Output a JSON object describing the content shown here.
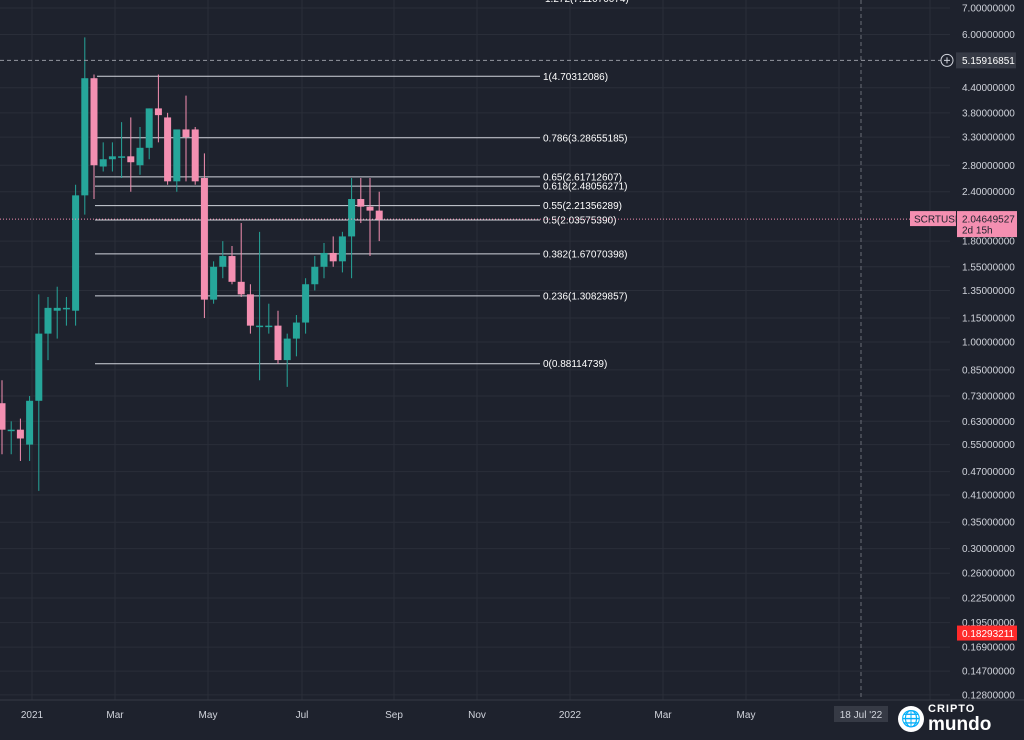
{
  "chart_data": {
    "type": "candlestick",
    "symbol": "SCRTUSD",
    "y_scale": "log",
    "ylim": [
      0.12,
      7.5
    ],
    "grid": true,
    "y_ticks": [
      "7.00000000",
      "6.00000000",
      "5.15916851",
      "4.40000000",
      "3.80000000",
      "3.30000000",
      "2.80000000",
      "2.40000000",
      "2.04649527",
      "1.80000000",
      "1.55000000",
      "1.35000000",
      "1.15000000",
      "1.00000000",
      "0.85000000",
      "0.73000000",
      "0.63000000",
      "0.55000000",
      "0.47000000",
      "0.41000000",
      "0.35000000",
      "0.30000000",
      "0.26000000",
      "0.22500000",
      "0.19500000",
      "0.18293211",
      "0.16900000",
      "0.14700000",
      "0.12800000"
    ],
    "x_ticks": [
      "2021",
      "Mar",
      "May",
      "Jul",
      "Sep",
      "Nov",
      "2022",
      "Mar",
      "May"
    ],
    "x_ticks_partial": [
      "18 Jul '22"
    ],
    "last_price": {
      "label": "SCRTUSD",
      "value": "2.04649527",
      "countdown": "2d 15h",
      "color": "#f48fb1"
    },
    "crosshair_price": {
      "value": "5.15916851"
    },
    "red_price": {
      "value": "0.18293211",
      "color": "#ff2a2a"
    },
    "clipped_top_label": "1.272(7.11070074)",
    "fib_levels": [
      {
        "label": "1(4.70312086)",
        "value": 4.70312086
      },
      {
        "label": "0.786(3.28655185)",
        "value": 3.28655185
      },
      {
        "label": "0.65(2.61712607)",
        "value": 2.61712607
      },
      {
        "label": "0.618(2.48056271)",
        "value": 2.48056271
      },
      {
        "label": "0.55(2.21356289)",
        "value": 2.21356289
      },
      {
        "label": "0.5(2.03575390)",
        "value": 2.0357539
      },
      {
        "label": "0.382(1.67070398)",
        "value": 1.67070398
      },
      {
        "label": "0.236(1.30829857)",
        "value": 1.30829857
      },
      {
        "label": "0(0.88114739)",
        "value": 0.88114739
      }
    ],
    "candles": [
      {
        "o": 0.7,
        "h": 0.8,
        "l": 0.52,
        "c": 0.6
      },
      {
        "o": 0.6,
        "h": 0.63,
        "l": 0.52,
        "c": 0.6
      },
      {
        "o": 0.6,
        "h": 0.64,
        "l": 0.5,
        "c": 0.57
      },
      {
        "o": 0.55,
        "h": 0.73,
        "l": 0.5,
        "c": 0.71
      },
      {
        "o": 0.71,
        "h": 1.32,
        "l": 0.42,
        "c": 1.05
      },
      {
        "o": 1.05,
        "h": 1.3,
        "l": 0.9,
        "c": 1.22
      },
      {
        "o": 1.2,
        "h": 1.38,
        "l": 1.02,
        "c": 1.22
      },
      {
        "o": 1.22,
        "h": 1.3,
        "l": 1.1,
        "c": 1.22
      },
      {
        "o": 1.2,
        "h": 2.5,
        "l": 1.1,
        "c": 2.35
      },
      {
        "o": 2.35,
        "h": 5.9,
        "l": 2.1,
        "c": 4.65
      },
      {
        "o": 4.65,
        "h": 4.75,
        "l": 2.3,
        "c": 2.8
      },
      {
        "o": 2.78,
        "h": 3.2,
        "l": 2.7,
        "c": 2.9
      },
      {
        "o": 2.9,
        "h": 3.2,
        "l": 2.7,
        "c": 2.95
      },
      {
        "o": 2.95,
        "h": 3.6,
        "l": 2.6,
        "c": 2.95
      },
      {
        "o": 2.95,
        "h": 3.7,
        "l": 2.4,
        "c": 2.85
      },
      {
        "o": 2.8,
        "h": 3.5,
        "l": 2.65,
        "c": 3.1
      },
      {
        "o": 3.1,
        "h": 3.9,
        "l": 2.9,
        "c": 3.9
      },
      {
        "o": 3.9,
        "h": 4.75,
        "l": 3.2,
        "c": 3.75
      },
      {
        "o": 3.7,
        "h": 3.8,
        "l": 2.5,
        "c": 2.55
      },
      {
        "o": 2.55,
        "h": 3.4,
        "l": 2.4,
        "c": 3.45
      },
      {
        "o": 3.45,
        "h": 4.2,
        "l": 2.55,
        "c": 3.3
      },
      {
        "o": 3.45,
        "h": 3.5,
        "l": 2.5,
        "c": 2.55
      },
      {
        "o": 2.6,
        "h": 3.0,
        "l": 1.15,
        "c": 1.28
      },
      {
        "o": 1.28,
        "h": 1.6,
        "l": 1.25,
        "c": 1.55
      },
      {
        "o": 1.55,
        "h": 1.8,
        "l": 1.45,
        "c": 1.65
      },
      {
        "o": 1.65,
        "h": 1.75,
        "l": 1.4,
        "c": 1.42
      },
      {
        "o": 1.42,
        "h": 2.0,
        "l": 1.3,
        "c": 1.32
      },
      {
        "o": 1.32,
        "h": 1.4,
        "l": 1.05,
        "c": 1.1
      },
      {
        "o": 1.1,
        "h": 1.9,
        "l": 0.8,
        "c": 1.1
      },
      {
        "o": 1.1,
        "h": 1.25,
        "l": 1.05,
        "c": 1.1
      },
      {
        "o": 1.1,
        "h": 1.2,
        "l": 0.88,
        "c": 0.9
      },
      {
        "o": 0.9,
        "h": 1.05,
        "l": 0.77,
        "c": 1.02
      },
      {
        "o": 1.02,
        "h": 1.17,
        "l": 0.92,
        "c": 1.12
      },
      {
        "o": 1.12,
        "h": 1.45,
        "l": 1.05,
        "c": 1.4
      },
      {
        "o": 1.4,
        "h": 1.65,
        "l": 1.35,
        "c": 1.55
      },
      {
        "o": 1.55,
        "h": 1.78,
        "l": 1.45,
        "c": 1.68
      },
      {
        "o": 1.68,
        "h": 1.85,
        "l": 1.55,
        "c": 1.6
      },
      {
        "o": 1.6,
        "h": 1.9,
        "l": 1.5,
        "c": 1.85
      },
      {
        "o": 1.85,
        "h": 2.6,
        "l": 1.45,
        "c": 2.3
      },
      {
        "o": 2.3,
        "h": 2.6,
        "l": 2.0,
        "c": 2.2
      },
      {
        "o": 2.2,
        "h": 2.6,
        "l": 1.65,
        "c": 2.15
      },
      {
        "o": 2.15,
        "h": 2.4,
        "l": 1.8,
        "c": 2.04
      }
    ]
  },
  "logo": {
    "line1": "CRIPTO",
    "line2": "mundo"
  },
  "colors": {
    "up": "#26a69a",
    "down": "#f48fb1",
    "background": "#1e222d",
    "grid": "#2a2e39",
    "fib": "#d1d4dc",
    "red_tag": "#ff2a2a"
  }
}
